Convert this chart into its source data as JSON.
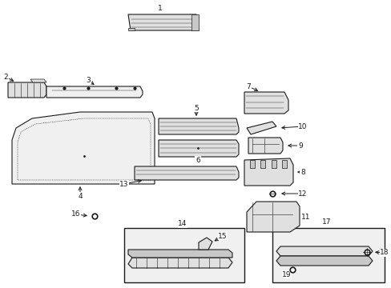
{
  "bg_color": "#ffffff",
  "line_color": "#1a1a1a",
  "fill_light": "#f0f0f0",
  "fill_mid": "#e0e0e0",
  "fill_dark": "#c8c8c8",
  "figsize": [
    4.89,
    3.6
  ],
  "dpi": 100
}
